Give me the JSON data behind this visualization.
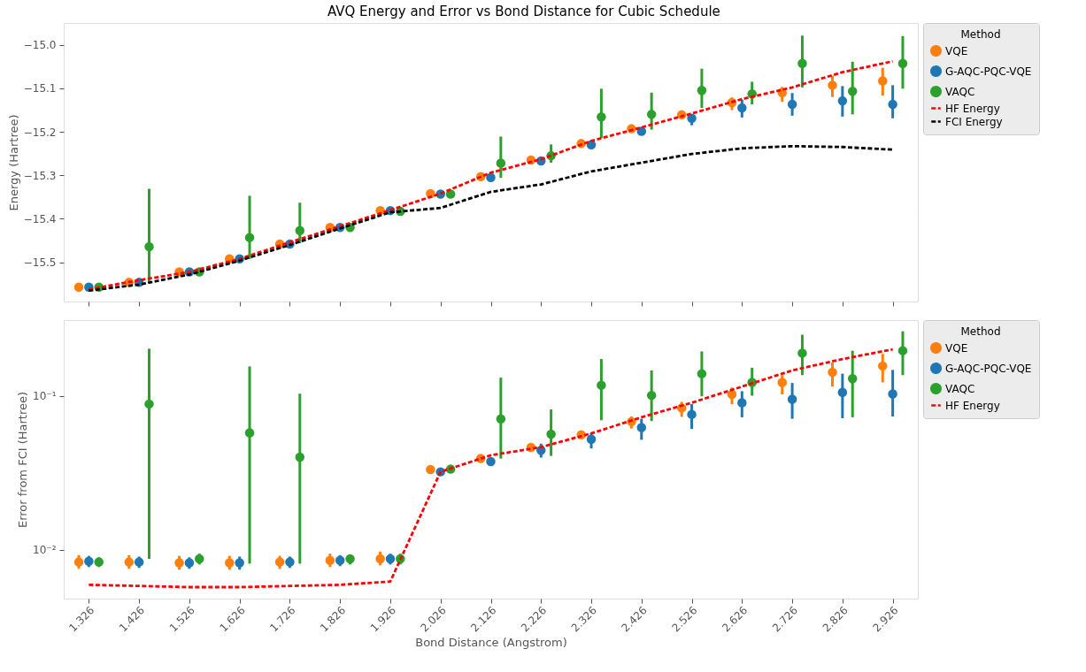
{
  "chart_data": [
    {
      "type": "scatter",
      "title": "AVQ Energy and Error vs Bond Distance for Cubic Schedule",
      "ylabel": "Energy (Hartree)",
      "categories": [
        "1.326",
        "1.426",
        "1.526",
        "1.626",
        "1.726",
        "1.826",
        "1.926",
        "2.026",
        "2.126",
        "2.226",
        "2.326",
        "2.426",
        "2.526",
        "2.626",
        "2.726",
        "2.826",
        "2.926"
      ],
      "series": [
        {
          "name": "VQE",
          "type": "scatter",
          "color": "#ff7f0e",
          "marker": "circle",
          "values": [
            -15.557,
            -15.546,
            -15.522,
            -15.492,
            -15.458,
            -15.42,
            -15.381,
            -15.342,
            -15.303,
            -15.265,
            -15.227,
            -15.193,
            -15.161,
            -15.133,
            -15.11,
            -15.093,
            -15.083
          ],
          "errors": [
            null,
            null,
            null,
            null,
            null,
            null,
            null,
            null,
            null,
            null,
            null,
            null,
            null,
            [
              -15.15,
              -15.121
            ],
            [
              -15.131,
              -15.097
            ],
            [
              -15.12,
              -15.071
            ],
            [
              -15.117,
              -15.053
            ]
          ]
        },
        {
          "name": "G-AQC-PQC-VQE",
          "type": "scatter",
          "color": "#1f77b4",
          "marker": "circle",
          "values": [
            -15.557,
            -15.546,
            -15.522,
            -15.492,
            -15.458,
            -15.42,
            -15.381,
            -15.343,
            -15.305,
            -15.267,
            -15.23,
            -15.199,
            -15.169,
            -15.145,
            -15.137,
            -15.129,
            -15.137
          ],
          "errors": [
            null,
            null,
            null,
            null,
            null,
            null,
            null,
            null,
            null,
            null,
            null,
            null,
            [
              -15.185,
              -15.161
            ],
            [
              -15.167,
              -15.126
            ],
            [
              -15.163,
              -15.111
            ],
            [
              -15.165,
              -15.095
            ],
            [
              -15.169,
              -15.093
            ]
          ]
        },
        {
          "name": "VAQC",
          "type": "scatter",
          "color": "#2ca02c",
          "marker": "circle",
          "values": [
            -15.557,
            -15.464,
            -15.522,
            -15.443,
            -15.427,
            -15.42,
            -15.383,
            -15.343,
            -15.272,
            -15.255,
            -15.166,
            -15.16,
            -15.105,
            -15.113,
            -15.043,
            -15.107,
            -15.043
          ],
          "errors": [
            null,
            [
              -15.547,
              -15.331
            ],
            null,
            [
              -15.492,
              -15.347
            ],
            [
              -15.456,
              -15.363
            ],
            null,
            null,
            null,
            [
              -15.306,
              -15.211
            ],
            [
              -15.271,
              -15.229
            ],
            [
              -15.215,
              -15.101
            ],
            [
              -15.195,
              -15.11
            ],
            [
              -15.145,
              -15.055
            ],
            [
              -15.137,
              -15.085
            ],
            [
              -15.098,
              -14.979
            ],
            [
              -15.16,
              -15.039
            ],
            [
              -15.101,
              -14.98
            ]
          ]
        },
        {
          "name": "HF Energy",
          "type": "line",
          "color": "#ff0000",
          "line_style": "dashed",
          "values": [
            -15.562,
            -15.541,
            -15.522,
            -15.492,
            -15.454,
            -15.417,
            -15.38,
            -15.342,
            -15.294,
            -15.263,
            -15.221,
            -15.19,
            -15.158,
            -15.125,
            -15.098,
            -15.063,
            -15.038
          ]
        },
        {
          "name": "FCI Energy",
          "type": "line",
          "color": "#000000",
          "line_style": "dashed",
          "values": [
            -15.565,
            -15.551,
            -15.528,
            -15.496,
            -15.46,
            -15.422,
            -15.385,
            -15.375,
            -15.338,
            -15.321,
            -15.291,
            -15.271,
            -15.251,
            -15.238,
            -15.233,
            -15.235,
            -15.241
          ]
        }
      ],
      "ylim": [
        -15.59,
        -14.95
      ],
      "yticks": [
        {
          "value": -15.5,
          "label": "−15.5"
        },
        {
          "value": -15.4,
          "label": "−15.4"
        },
        {
          "value": -15.3,
          "label": "−15.3"
        },
        {
          "value": -15.2,
          "label": "−15.2"
        },
        {
          "value": -15.1,
          "label": "−15.1"
        },
        {
          "value": -15.0,
          "label": "−15.0"
        }
      ],
      "grid": "y",
      "legend": "top right",
      "legend_title": "Method",
      "tick_labels": "y"
    },
    {
      "type": "scatter",
      "xlabel": "Bond Distance (Angstrom)",
      "ylabel": "Error from FCI (Hartree)",
      "categories": [
        "1.326",
        "1.426",
        "1.526",
        "1.626",
        "1.726",
        "1.826",
        "1.926",
        "2.026",
        "2.126",
        "2.226",
        "2.326",
        "2.426",
        "2.526",
        "2.626",
        "2.726",
        "2.826",
        "2.926"
      ],
      "series": [
        {
          "name": "VQE",
          "type": "scatter",
          "color": "#ff7f0e",
          "marker": "circle",
          "values": [
            0.0083,
            0.0083,
            0.0082,
            0.0082,
            0.0083,
            0.0085,
            0.0087,
            0.0331,
            0.0391,
            0.0461,
            0.0557,
            0.0678,
            0.0832,
            0.102,
            0.122,
            0.142,
            0.156
          ],
          "errors": [
            [
              0.0075,
              0.0092
            ],
            [
              0.0075,
              0.0092
            ],
            [
              0.0074,
              0.0091
            ],
            [
              0.0074,
              0.0091
            ],
            [
              0.0075,
              0.0091
            ],
            [
              0.0077,
              0.0094
            ],
            [
              0.0079,
              0.0097
            ],
            null,
            null,
            null,
            null,
            [
              0.0612,
              0.0733
            ],
            [
              0.0729,
              0.0912
            ],
            [
              0.0881,
              0.113
            ],
            [
              0.102,
              0.136
            ],
            [
              0.1146,
              0.164
            ],
            [
              0.122,
              0.187
            ]
          ]
        },
        {
          "name": "G-AQC-PQC-VQE",
          "type": "scatter",
          "color": "#1f77b4",
          "marker": "circle",
          "values": [
            0.0084,
            0.0083,
            0.0082,
            0.0082,
            0.0083,
            0.0085,
            0.0087,
            0.032,
            0.0373,
            0.0442,
            0.0521,
            0.0621,
            0.0756,
            0.09,
            0.0949,
            0.105,
            0.1026
          ],
          "errors": [
            [
              0.0077,
              0.0091
            ],
            [
              0.0076,
              0.009
            ],
            [
              0.0075,
              0.0089
            ],
            [
              0.0074,
              0.009
            ],
            [
              0.0076,
              0.009
            ],
            [
              0.0078,
              0.0092
            ],
            [
              0.008,
              0.0094
            ],
            null,
            [
              0.0355,
              0.039
            ],
            [
              0.0396,
              0.0488
            ],
            [
              0.0454,
              0.0569
            ],
            [
              0.0517,
              0.0708
            ],
            [
              0.0608,
              0.0881
            ],
            [
              0.0724,
              0.107
            ],
            [
              0.0708,
              0.121
            ],
            [
              0.0714,
              0.139
            ],
            [
              0.0733,
              0.147
            ]
          ]
        },
        {
          "name": "VAQC",
          "type": "scatter",
          "color": "#2ca02c",
          "marker": "circle",
          "values": [
            0.0083,
            0.0883,
            0.0087,
            0.0574,
            0.0399,
            0.0087,
            0.0087,
            0.0333,
            0.0706,
            0.0562,
            0.117,
            0.1005,
            0.139,
            0.122,
            0.189,
            0.129,
            0.196
          ],
          "errors": [
            [
              0.0077,
              0.0089
            ],
            [
              0.0087,
              0.202
            ],
            [
              0.008,
              0.0094
            ],
            [
              0.0081,
              0.155
            ],
            [
              0.0081,
              0.103
            ],
            [
              0.008,
              0.0093
            ],
            [
              0.008,
              0.0094
            ],
            null,
            [
              0.039,
              0.131
            ],
            [
              0.0406,
              0.0814
            ],
            [
              0.0693,
              0.173
            ],
            [
              0.0684,
              0.146
            ],
            [
              0.0991,
              0.194
            ],
            [
              0.1,
              0.152
            ],
            [
              0.136,
              0.249
            ],
            [
              0.0724,
              0.196
            ],
            [
              0.136,
              0.262
            ]
          ]
        },
        {
          "name": "HF Energy",
          "type": "line",
          "color": "#ff0000",
          "line_style": "dashed",
          "values": [
            0.0059,
            0.0058,
            0.0057,
            0.0057,
            0.0058,
            0.0059,
            0.0062,
            0.032,
            0.041,
            0.0463,
            0.0569,
            0.0724,
            0.09,
            0.1146,
            0.146,
            0.173,
            0.2
          ]
        }
      ],
      "ylim": [
        0.0048,
        0.31
      ],
      "yticks": [
        {
          "value": 0.01,
          "label": "10⁻²"
        },
        {
          "value": 0.1,
          "label": "10⁻¹"
        }
      ],
      "log": "y",
      "grid": "y",
      "legend": "top right",
      "legend_title": "Method"
    }
  ]
}
